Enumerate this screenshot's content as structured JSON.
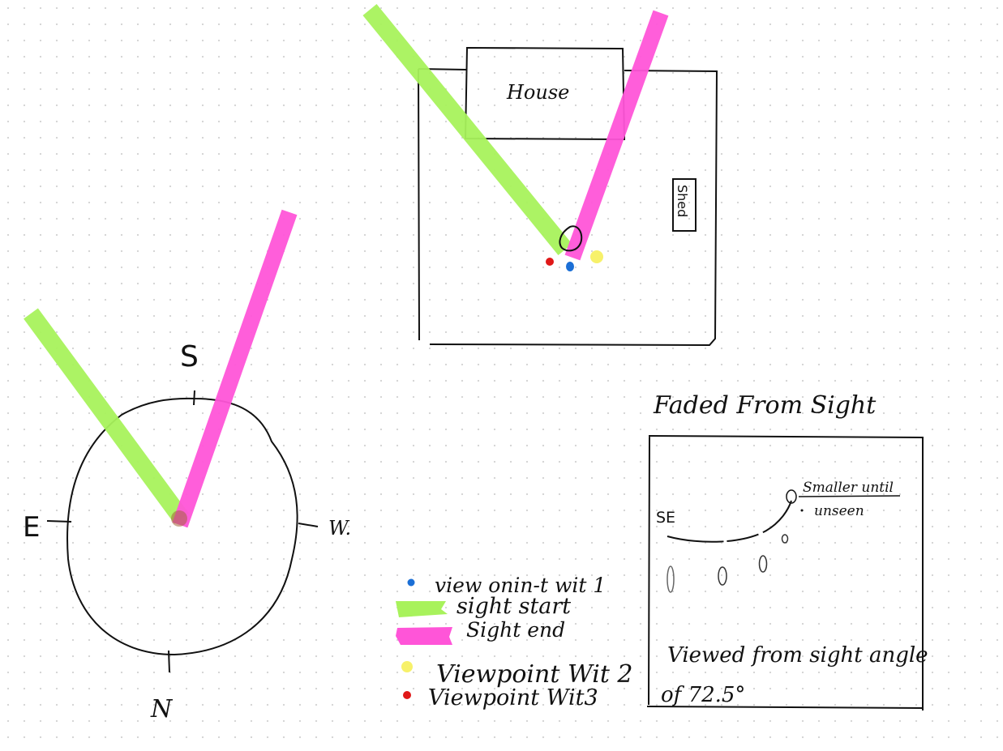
{
  "compass": {
    "south": "S",
    "east": "E",
    "west": "W.",
    "north": "N"
  },
  "map": {
    "house_label": "House",
    "shed_label": "Shed"
  },
  "legend": {
    "view_point_1": "view onin-t  wit 1",
    "sight_start": "sight start",
    "sight_end": "Sight end",
    "view_point_2": "Viewpoint  Wit 2",
    "view_point_3": "Viewpoint  Wit3"
  },
  "inset": {
    "title": "Faded From Sight",
    "direction_label": "SE",
    "smaller_label": "Smaller until",
    "unseen_label": "unseen",
    "caption_line1": "Viewed from sight angle",
    "caption_line2": "of 72.5°"
  },
  "colors": {
    "sight_start": "#a8f25c",
    "sight_end": "#ff55d8",
    "witness_1": "#1b6fd6",
    "witness_2": "#f7f16a",
    "witness_3": "#e01818",
    "ink": "#111111"
  }
}
